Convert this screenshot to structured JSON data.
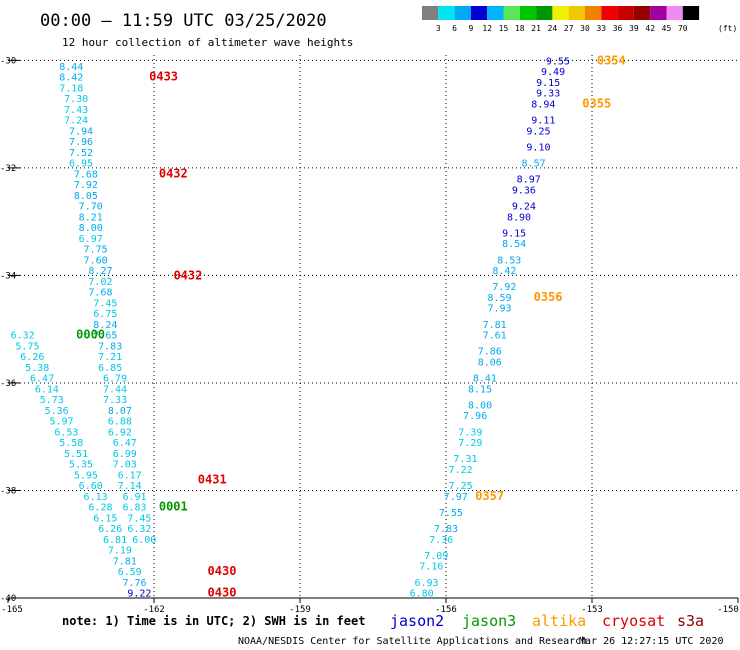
{
  "header": {
    "title": "00:00 – 11:59 UTC 03/25/2020",
    "subtitle": "12 hour collection of altimeter wave heights"
  },
  "color_scale": {
    "labels": [
      "3",
      "6",
      "9",
      "12",
      "15",
      "18",
      "21",
      "24",
      "27",
      "30",
      "33",
      "36",
      "39",
      "42",
      "45",
      "70"
    ],
    "unit": "(ft)",
    "colors": [
      "#7f7f7f",
      "#00e6f0",
      "#00aaf0",
      "#0000d0",
      "#00b4ff",
      "#5ae65a",
      "#00c800",
      "#009600",
      "#f0f000",
      "#f0c800",
      "#f08200",
      "#f00000",
      "#c80000",
      "#960000",
      "#a000a0",
      "#f08cf0",
      "#000000"
    ]
  },
  "footer": {
    "note": "note:  1) Time is in UTC;  2) SWH is in feet",
    "credit": "NOAA/NESDIS Center for Satellite Applications and Research",
    "timestamp": "Mar 26 12:27:15 UTC 2020"
  },
  "legend": [
    {
      "name": "jason2",
      "color": "#0000cc"
    },
    {
      "name": "jason3",
      "color": "#009900"
    },
    {
      "name": "altika",
      "color": "#ff9900"
    },
    {
      "name": "cryosat",
      "color": "#dd0000"
    },
    {
      "name": "s3a",
      "color": "#880000"
    }
  ],
  "chart_data": {
    "type": "scatter",
    "title": "00:00 – 11:59 UTC 03/25/2020",
    "subtitle": "12 hour collection of altimeter wave heights",
    "xlim": [
      -165,
      -150
    ],
    "ylim": [
      -40,
      -29.9
    ],
    "x_ticks": [
      "-165",
      "-162",
      "-159",
      "-156",
      "-153",
      "-150"
    ],
    "y_ticks": [
      "-30",
      "-32",
      "-34",
      "-36",
      "-38",
      "-40"
    ],
    "grid": true,
    "colors": {
      "low": "#00c8e6",
      "mid": "#0000d0",
      "cryosat": "#dd0000",
      "jason3": "#009900",
      "altika": "#ff9900"
    },
    "tracks": [
      {
        "name": "cryosat",
        "color": "#dd0000",
        "points": [
          {
            "x": -163.7,
            "y": -30.1,
            "v": "8.44"
          },
          {
            "x": -163.7,
            "y": -30.3,
            "v": "8.42"
          },
          {
            "x": -163.7,
            "y": -30.5,
            "v": "7.18"
          },
          {
            "x": -163.6,
            "y": -30.7,
            "v": "7.30"
          },
          {
            "x": -163.6,
            "y": -30.9,
            "v": "7.43"
          },
          {
            "x": -163.6,
            "y": -31.1,
            "v": "7.24"
          },
          {
            "x": -163.5,
            "y": -31.3,
            "v": "7.94"
          },
          {
            "x": -163.5,
            "y": -31.5,
            "v": "7.96"
          },
          {
            "x": -163.5,
            "y": -31.7,
            "v": "7.52"
          },
          {
            "x": -163.5,
            "y": -31.9,
            "v": "6.95"
          },
          {
            "x": -163.4,
            "y": -32.1,
            "v": "7.68"
          },
          {
            "x": -163.4,
            "y": -32.3,
            "v": "7.92"
          },
          {
            "x": -163.4,
            "y": -32.5,
            "v": "8.05"
          },
          {
            "x": -163.3,
            "y": -32.7,
            "v": "7.70"
          },
          {
            "x": -163.3,
            "y": -32.9,
            "v": "8.21"
          },
          {
            "x": -163.3,
            "y": -33.1,
            "v": "8.00"
          },
          {
            "x": -163.3,
            "y": -33.3,
            "v": "6.97"
          },
          {
            "x": -163.2,
            "y": -33.5,
            "v": "7.75"
          },
          {
            "x": -163.2,
            "y": -33.7,
            "v": "7.60"
          },
          {
            "x": -163.1,
            "y": -33.9,
            "v": "8.27"
          },
          {
            "x": -163.1,
            "y": -34.1,
            "v": "7.02"
          },
          {
            "x": -163.1,
            "y": -34.3,
            "v": "7.68"
          },
          {
            "x": -163.0,
            "y": -34.5,
            "v": "7.45"
          },
          {
            "x": -163.0,
            "y": -34.7,
            "v": "6.75"
          },
          {
            "x": -163.0,
            "y": -34.9,
            "v": "8.24"
          },
          {
            "x": -163.0,
            "y": -35.1,
            "v": "7.65"
          },
          {
            "x": -162.9,
            "y": -35.3,
            "v": "7.83"
          },
          {
            "x": -162.9,
            "y": -35.5,
            "v": "7.21"
          },
          {
            "x": -162.9,
            "y": -35.7,
            "v": "6.85"
          },
          {
            "x": -162.8,
            "y": -35.9,
            "v": "6.79"
          },
          {
            "x": -162.8,
            "y": -36.1,
            "v": "7.44"
          },
          {
            "x": -162.8,
            "y": -36.3,
            "v": "7.33"
          },
          {
            "x": -162.7,
            "y": -36.5,
            "v": "8.07"
          },
          {
            "x": -162.7,
            "y": -36.7,
            "v": "6.88"
          },
          {
            "x": -162.7,
            "y": -36.9,
            "v": "6.92"
          },
          {
            "x": -162.6,
            "y": -37.1,
            "v": "6.47"
          },
          {
            "x": -162.6,
            "y": -37.3,
            "v": "6.99"
          },
          {
            "x": -162.6,
            "y": -37.5,
            "v": "7.03"
          },
          {
            "x": -162.5,
            "y": -37.7,
            "v": "6.17"
          },
          {
            "x": -162.5,
            "y": -37.9,
            "v": "7.14"
          },
          {
            "x": -162.4,
            "y": -38.1,
            "v": "6.91"
          },
          {
            "x": -162.4,
            "y": -38.3,
            "v": "6.83"
          },
          {
            "x": -162.3,
            "y": -38.5,
            "v": "7.45"
          },
          {
            "x": -162.3,
            "y": -38.7,
            "v": "6.32"
          },
          {
            "x": -162.2,
            "y": -38.9,
            "v": "6.00"
          }
        ]
      },
      {
        "name": "jason3",
        "color": "#009900",
        "points": [
          {
            "x": -164.7,
            "y": -35.1,
            "v": "6.32"
          },
          {
            "x": -164.6,
            "y": -35.3,
            "v": "5.75"
          },
          {
            "x": -164.5,
            "y": -35.5,
            "v": "6.26"
          },
          {
            "x": -164.4,
            "y": -35.7,
            "v": "5.38"
          },
          {
            "x": -164.3,
            "y": -35.9,
            "v": "6.47"
          },
          {
            "x": -164.2,
            "y": -36.1,
            "v": "6.14"
          },
          {
            "x": -164.1,
            "y": -36.3,
            "v": "5.73"
          },
          {
            "x": -164.0,
            "y": -36.5,
            "v": "5.36"
          },
          {
            "x": -163.9,
            "y": -36.7,
            "v": "5.97"
          },
          {
            "x": -163.8,
            "y": -36.9,
            "v": "6.53"
          },
          {
            "x": -163.7,
            "y": -37.1,
            "v": "5.58"
          },
          {
            "x": -163.6,
            "y": -37.3,
            "v": "5.51"
          },
          {
            "x": -163.5,
            "y": -37.5,
            "v": "5.35"
          },
          {
            "x": -163.4,
            "y": -37.7,
            "v": "5.95"
          },
          {
            "x": -163.3,
            "y": -37.9,
            "v": "6.60"
          },
          {
            "x": -163.2,
            "y": -38.1,
            "v": "6.13"
          },
          {
            "x": -163.1,
            "y": -38.3,
            "v": "6.28"
          },
          {
            "x": -163.0,
            "y": -38.5,
            "v": "6.15"
          },
          {
            "x": -162.9,
            "y": -38.7,
            "v": "6.26"
          },
          {
            "x": -162.8,
            "y": -38.9,
            "v": "6.81"
          },
          {
            "x": -162.7,
            "y": -39.1,
            "v": "7.19"
          },
          {
            "x": -162.6,
            "y": -39.3,
            "v": "7.81"
          },
          {
            "x": -162.5,
            "y": -39.5,
            "v": "6.59"
          },
          {
            "x": -162.4,
            "y": -39.7,
            "v": "7.76"
          },
          {
            "x": -162.3,
            "y": -39.9,
            "v": "9.22"
          }
        ]
      },
      {
        "name": "jason2",
        "color": "#0000cc",
        "points": [
          {
            "x": -153.7,
            "y": -30.0,
            "v": "9.55"
          },
          {
            "x": -153.8,
            "y": -30.2,
            "v": "9.49"
          },
          {
            "x": -153.9,
            "y": -30.4,
            "v": "9.15"
          },
          {
            "x": -153.9,
            "y": -30.6,
            "v": "9.33"
          },
          {
            "x": -154.0,
            "y": -30.8,
            "v": "8.94"
          },
          {
            "x": -154.0,
            "y": -31.1,
            "v": "9.11"
          },
          {
            "x": -154.1,
            "y": -31.3,
            "v": "9.25"
          },
          {
            "x": -154.1,
            "y": -31.6,
            "v": "9.10"
          },
          {
            "x": -154.2,
            "y": -31.9,
            "v": "8.57"
          },
          {
            "x": -154.3,
            "y": -32.2,
            "v": "8.97"
          },
          {
            "x": -154.4,
            "y": -32.4,
            "v": "9.36"
          },
          {
            "x": -154.4,
            "y": -32.7,
            "v": "9.24"
          },
          {
            "x": -154.5,
            "y": -32.9,
            "v": "8.90"
          },
          {
            "x": -154.6,
            "y": -33.2,
            "v": "9.15"
          },
          {
            "x": -154.6,
            "y": -33.4,
            "v": "8.54"
          },
          {
            "x": -154.7,
            "y": -33.7,
            "v": "8.53"
          },
          {
            "x": -154.8,
            "y": -33.9,
            "v": "8.42"
          },
          {
            "x": -154.8,
            "y": -34.2,
            "v": "7.92"
          },
          {
            "x": -154.9,
            "y": -34.4,
            "v": "8.59"
          },
          {
            "x": -154.9,
            "y": -34.6,
            "v": "7.93"
          },
          {
            "x": -155.0,
            "y": -34.9,
            "v": "7.81"
          },
          {
            "x": -155.0,
            "y": -35.1,
            "v": "7.61"
          },
          {
            "x": -155.1,
            "y": -35.4,
            "v": "7.86"
          },
          {
            "x": -155.1,
            "y": -35.6,
            "v": "8.06"
          },
          {
            "x": -155.2,
            "y": -35.9,
            "v": "8.41"
          },
          {
            "x": -155.3,
            "y": -36.1,
            "v": "8.15"
          },
          {
            "x": -155.3,
            "y": -36.4,
            "v": "8.00"
          },
          {
            "x": -155.4,
            "y": -36.6,
            "v": "7.96"
          },
          {
            "x": -155.5,
            "y": -36.9,
            "v": "7.39"
          },
          {
            "x": -155.5,
            "y": -37.1,
            "v": "7.29"
          },
          {
            "x": -155.6,
            "y": -37.4,
            "v": "7.31"
          },
          {
            "x": -155.7,
            "y": -37.6,
            "v": "7.22"
          },
          {
            "x": -155.7,
            "y": -37.9,
            "v": "7.25"
          },
          {
            "x": -155.8,
            "y": -38.1,
            "v": "7.97"
          },
          {
            "x": -155.9,
            "y": -38.4,
            "v": "7.55"
          },
          {
            "x": -156.0,
            "y": -38.7,
            "v": "7.83"
          },
          {
            "x": -156.1,
            "y": -38.9,
            "v": "7.36"
          },
          {
            "x": -156.2,
            "y": -39.2,
            "v": "7.09"
          },
          {
            "x": -156.3,
            "y": -39.4,
            "v": "7.16"
          },
          {
            "x": -156.4,
            "y": -39.7,
            "v": "6.93"
          },
          {
            "x": -156.5,
            "y": -39.9,
            "v": "6.80"
          }
        ]
      }
    ],
    "time_labels": [
      {
        "x": -162.1,
        "y": -30.3,
        "text": "0433",
        "color": "#dd0000"
      },
      {
        "x": -161.9,
        "y": -32.1,
        "text": "0432",
        "color": "#dd0000"
      },
      {
        "x": -161.6,
        "y": -34.0,
        "text": "0432",
        "color": "#dd0000"
      },
      {
        "x": -161.1,
        "y": -37.8,
        "text": "0431",
        "color": "#dd0000"
      },
      {
        "x": -160.9,
        "y": -39.5,
        "text": "0430",
        "color": "#dd0000"
      },
      {
        "x": -160.9,
        "y": -39.9,
        "text": "0430",
        "color": "#dd0000"
      },
      {
        "x": -163.6,
        "y": -35.1,
        "text": "0000",
        "color": "#009900"
      },
      {
        "x": -161.9,
        "y": -38.3,
        "text": "0001",
        "color": "#009900"
      },
      {
        "x": -152.9,
        "y": -30.0,
        "text": "0354",
        "color": "#ff9900"
      },
      {
        "x": -153.2,
        "y": -30.8,
        "text": "0355",
        "color": "#ff9900"
      },
      {
        "x": -154.2,
        "y": -34.4,
        "text": "0356",
        "color": "#ff9900"
      },
      {
        "x": -155.4,
        "y": -38.1,
        "text": "0357",
        "color": "#ff9900"
      }
    ]
  }
}
